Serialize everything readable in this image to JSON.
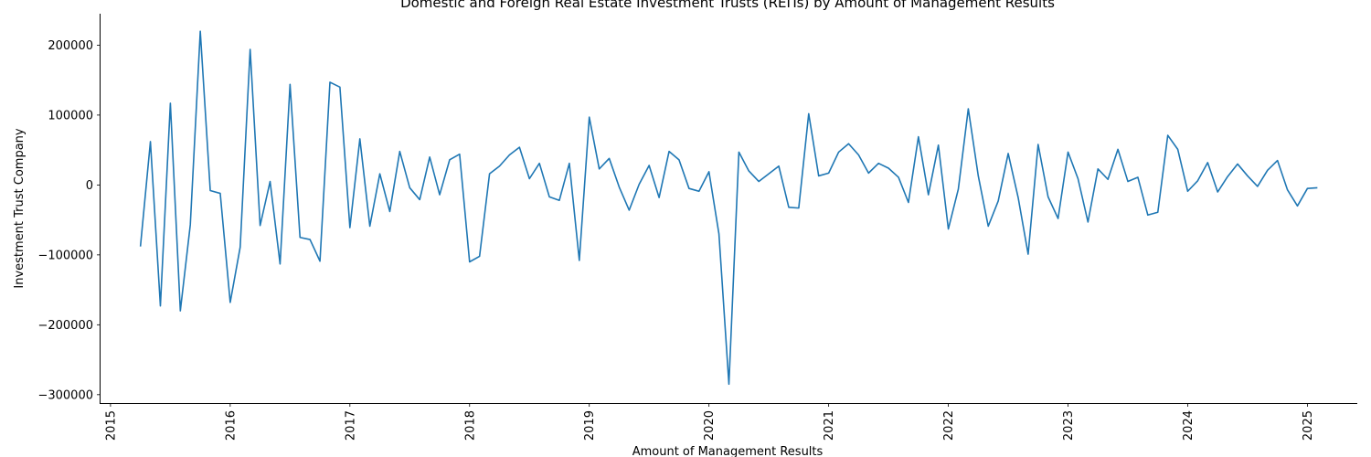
{
  "chart_data": {
    "type": "line",
    "title": "Domestic and Foreign Real Estate Investment Trusts (REITs) by Amount of Management Results",
    "xlabel": "Amount of Management Results",
    "ylabel": "Investment Trust Company",
    "x_ticks": [
      "2015",
      "2016",
      "2017",
      "2018",
      "2019",
      "2020",
      "2021",
      "2022",
      "2023",
      "2024",
      "2025"
    ],
    "y_ticks": [
      "−300000",
      "−200000",
      "−100000",
      "0",
      "100000",
      "200000"
    ],
    "xlim": [
      "2014-12",
      "2025-06"
    ],
    "ylim": [
      -312000,
      245000
    ],
    "grid": false,
    "series": [
      {
        "color": "#1f77b4",
        "x": [
          "2015-04",
          "2015-05",
          "2015-06",
          "2015-07",
          "2015-08",
          "2015-09",
          "2015-10",
          "2015-11",
          "2015-12",
          "2016-01",
          "2016-02",
          "2016-03",
          "2016-04",
          "2016-05",
          "2016-06",
          "2016-07",
          "2016-08",
          "2016-09",
          "2016-10",
          "2016-11",
          "2016-12",
          "2017-01",
          "2017-02",
          "2017-03",
          "2017-04",
          "2017-05",
          "2017-06",
          "2017-07",
          "2017-08",
          "2017-09",
          "2017-10",
          "2017-11",
          "2017-12",
          "2018-01",
          "2018-02",
          "2018-03",
          "2018-04",
          "2018-05",
          "2018-06",
          "2018-07",
          "2018-08",
          "2018-09",
          "2018-10",
          "2018-11",
          "2018-12",
          "2019-01",
          "2019-02",
          "2019-03",
          "2019-04",
          "2019-05",
          "2019-06",
          "2019-07",
          "2019-08",
          "2019-09",
          "2019-10",
          "2019-11",
          "2019-12",
          "2020-01",
          "2020-02",
          "2020-03",
          "2020-04",
          "2020-05",
          "2020-06",
          "2020-07",
          "2020-08",
          "2020-09",
          "2020-10",
          "2020-11",
          "2020-12",
          "2021-01",
          "2021-02",
          "2021-03",
          "2021-04",
          "2021-05",
          "2021-06",
          "2021-07",
          "2021-08",
          "2021-09",
          "2021-10",
          "2021-11",
          "2021-12",
          "2022-01",
          "2022-02",
          "2022-03",
          "2022-04",
          "2022-05",
          "2022-06",
          "2022-07",
          "2022-08",
          "2022-09",
          "2022-10",
          "2022-11",
          "2022-12",
          "2023-01",
          "2023-02",
          "2023-03",
          "2023-04",
          "2023-05",
          "2023-06",
          "2023-07",
          "2023-08",
          "2023-09",
          "2023-10",
          "2023-11",
          "2023-12",
          "2024-01",
          "2024-02",
          "2024-03",
          "2024-04",
          "2024-05",
          "2024-06",
          "2024-07",
          "2024-08",
          "2024-09",
          "2024-10",
          "2024-11",
          "2024-12",
          "2025-01",
          "2025-02"
        ],
        "values": [
          -88000,
          62000,
          -173000,
          117000,
          -180000,
          -57000,
          220000,
          -8000,
          -12000,
          -168000,
          -89000,
          194000,
          -58000,
          5000,
          -113000,
          144000,
          -75000,
          -78000,
          -109000,
          147000,
          140000,
          -61000,
          66000,
          -59000,
          16000,
          -38000,
          48000,
          -4000,
          -21000,
          40000,
          -14000,
          36000,
          44000,
          -110000,
          -102000,
          16000,
          27000,
          43000,
          54000,
          9000,
          31000,
          -17000,
          -22000,
          31000,
          -108000,
          97000,
          23000,
          38000,
          -3000,
          -36000,
          1000,
          28000,
          -18000,
          48000,
          36000,
          -5000,
          -9000,
          19000,
          -70000,
          -285000,
          47000,
          20000,
          5000,
          16000,
          27000,
          -32000,
          -33000,
          102000,
          13000,
          17000,
          47000,
          59000,
          43000,
          17000,
          31000,
          24000,
          11000,
          -25000,
          69000,
          -14000,
          57000,
          -63000,
          -6000,
          109000,
          13000,
          -59000,
          -23000,
          45000,
          -18000,
          -99000,
          58000,
          -17000,
          -48000,
          47000,
          9000,
          -53000,
          23000,
          8000,
          51000,
          5000,
          11000,
          -43000,
          -39000,
          71000,
          51000,
          -9000,
          6000,
          32000,
          -10000,
          12000,
          30000,
          13000,
          -2000,
          21000,
          35000,
          -7000,
          -30000,
          -5000,
          -4000
        ]
      }
    ]
  }
}
